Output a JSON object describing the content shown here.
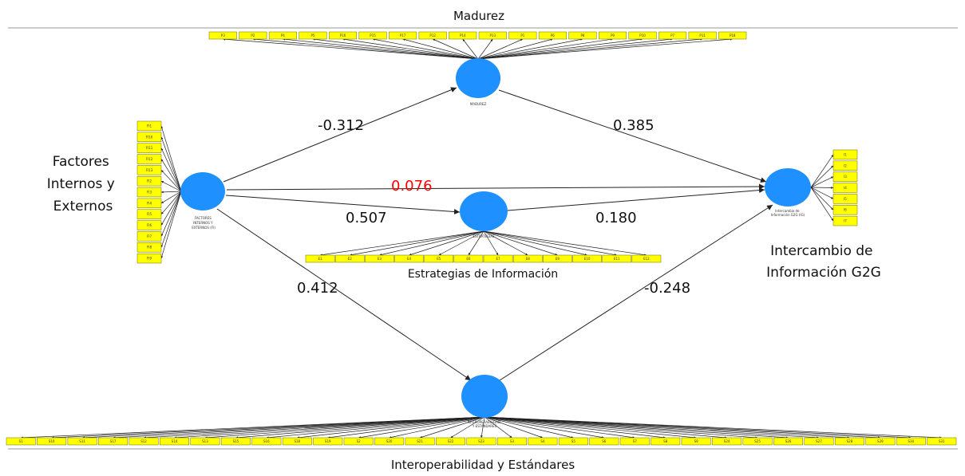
{
  "titles": {
    "madurez": "Madurez",
    "factores": [
      "Factores",
      "Internos y",
      "Externos"
    ],
    "estrategias": "Estrategias de Información",
    "intercambio": [
      "Intercambio de",
      "Información G2G"
    ],
    "interoperabilidad": "Interoperabilidad y Estándares"
  },
  "node_captions": {
    "madurez": [
      "MADUREZ"
    ],
    "factores": [
      "FACTORES",
      "INTERNOS Y",
      "EXTERNOS (FI)"
    ],
    "estrategias": [
      "ESTRATEGIAS"
    ],
    "intercambio": [
      "Intercambio de",
      "Información G2G (IG)"
    ],
    "interoperabilidad": [
      "INTEROPERABILIDAD",
      "Y ESTÁNDARES"
    ]
  },
  "path_coefficients": {
    "factores_madurez": "-0.312",
    "madurez_intercambio": "0.385",
    "factores_intercambio": "0.076",
    "factores_estrategias": "0.507",
    "estrategias_intercambio": "0.180",
    "factores_interoperabilidad": "0.412",
    "interoperabilidad_intercambio": "-0.248"
  },
  "indicators": {
    "madurez": [
      "P3",
      "P2",
      "P4",
      "P5",
      "P16",
      "P15",
      "P17",
      "P12",
      "P14",
      "P13",
      "P1",
      "P6",
      "P8",
      "P9",
      "P10",
      "P7",
      "P11",
      "P18"
    ],
    "factores": [
      "FI1",
      "FI10",
      "FI11",
      "FI12",
      "FI13",
      "FI2",
      "FI3",
      "FI4",
      "FI5",
      "FI6",
      "FI7",
      "FI8",
      "FI9"
    ],
    "estrategias": [
      "E1",
      "E2",
      "E3",
      "E4",
      "E5",
      "E6",
      "E7",
      "E8",
      "E9",
      "E10",
      "E11",
      "E12"
    ],
    "intercambio": [
      "I1",
      "I2",
      "I3",
      "I4",
      "I5",
      "I6",
      "I7"
    ],
    "interoperabilidad": [
      "S1",
      "S10",
      "S11",
      "S17",
      "S12",
      "S14",
      "S13",
      "S15",
      "S16",
      "S18",
      "S19",
      "S2",
      "S20",
      "S21",
      "S22",
      "S23",
      "S3",
      "S4",
      "S5",
      "S6",
      "S7",
      "S8",
      "S9",
      "S24",
      "S25",
      "S26",
      "S27",
      "S28",
      "S29",
      "S30",
      "S31"
    ]
  },
  "colors": {
    "latent": "#1e90ff",
    "indicator_fill": "#ffff00",
    "indicator_stroke": "#6b6b00",
    "highlight": "#ff0000",
    "line": "#222222"
  }
}
